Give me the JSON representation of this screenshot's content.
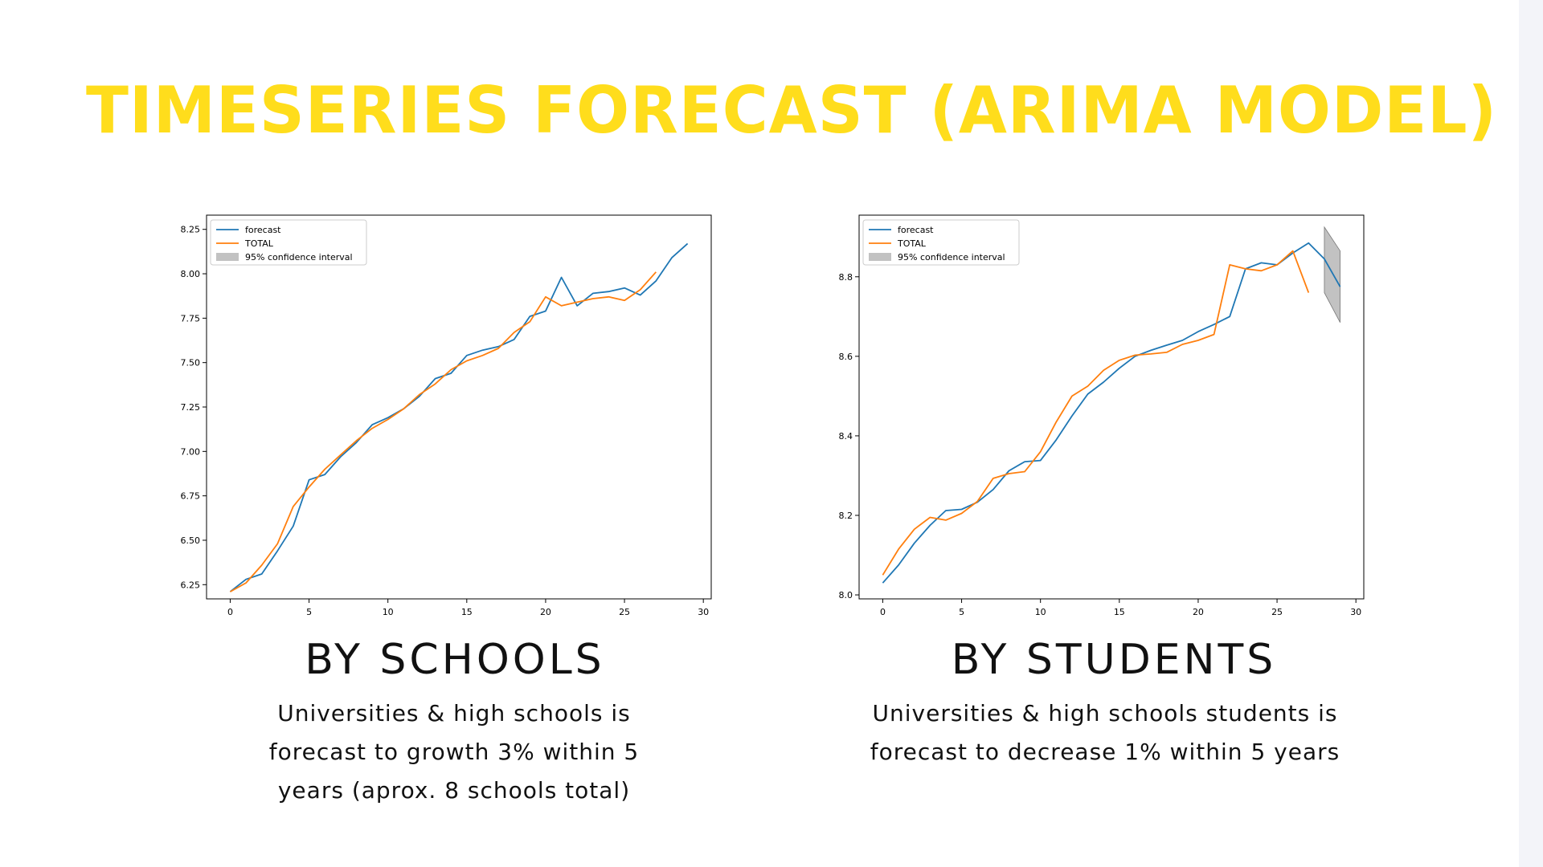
{
  "title": "TIMESERIES FORECAST (ARIMA MODEL)",
  "colors": {
    "title": "#ffdd1c",
    "forecast": "#1f77b4",
    "total": "#ff7f0e",
    "confidence": "#999999"
  },
  "sections": [
    {
      "heading": "BY SCHOOLS",
      "description": "Universities & high schools is forecast to growth 3% within 5 years (aprox. 8 schools total)"
    },
    {
      "heading": "BY STUDENTS",
      "description": "Universities & high schools students is forecast to decrease 1% within 5 years"
    }
  ],
  "chart_data": [
    {
      "type": "line",
      "legend": {
        "placement": "upper-left",
        "entries": [
          "forecast",
          "TOTAL",
          "95% confidence interval"
        ]
      },
      "xlim": [
        -1.5,
        30.5
      ],
      "ylim": [
        6.17,
        8.33
      ],
      "xticks": [
        0,
        5,
        10,
        15,
        20,
        25,
        30
      ],
      "xtick_labels": [
        "0",
        "5",
        "10",
        "15",
        "20",
        "25",
        "30"
      ],
      "yticks": [
        6.25,
        6.5,
        6.75,
        7.0,
        7.25,
        7.5,
        7.75,
        8.0,
        8.25
      ],
      "ytick_labels": [
        "6.25",
        "6.50",
        "6.75",
        "7.00",
        "7.25",
        "7.50",
        "7.75",
        "8.00",
        "8.25"
      ],
      "grid": false,
      "series": [
        {
          "name": "forecast",
          "x": [
            0,
            1,
            2,
            3,
            4,
            5,
            6,
            7,
            8,
            9,
            10,
            11,
            12,
            13,
            14,
            15,
            16,
            17,
            18,
            19,
            20,
            21,
            22,
            23,
            24,
            25,
            26,
            27,
            28,
            29
          ],
          "y": [
            6.21,
            6.28,
            6.31,
            6.44,
            6.58,
            6.84,
            6.87,
            6.97,
            7.05,
            7.15,
            7.19,
            7.24,
            7.31,
            7.41,
            7.44,
            7.54,
            7.57,
            7.59,
            7.63,
            7.76,
            7.79,
            7.98,
            7.82,
            7.89,
            7.9,
            7.92,
            7.88,
            7.96,
            8.09,
            8.17
          ]
        },
        {
          "name": "TOTAL",
          "x": [
            0,
            1,
            2,
            3,
            4,
            5,
            6,
            7,
            8,
            9,
            10,
            11,
            12,
            13,
            14,
            15,
            16,
            17,
            18,
            19,
            20,
            21,
            22,
            23,
            24,
            25,
            26,
            27
          ],
          "y": [
            6.21,
            6.26,
            6.36,
            6.48,
            6.69,
            6.8,
            6.9,
            6.98,
            7.06,
            7.13,
            7.18,
            7.24,
            7.32,
            7.38,
            7.46,
            7.51,
            7.54,
            7.58,
            7.67,
            7.73,
            7.87,
            7.82,
            7.84,
            7.86,
            7.87,
            7.85,
            7.91,
            8.01
          ]
        }
      ]
    },
    {
      "type": "line",
      "legend": {
        "placement": "upper-left",
        "entries": [
          "forecast",
          "TOTAL",
          "95% confidence interval"
        ]
      },
      "xlim": [
        -1.5,
        30.5
      ],
      "ylim": [
        7.99,
        8.955
      ],
      "xticks": [
        0,
        5,
        10,
        15,
        20,
        25,
        30
      ],
      "xtick_labels": [
        "0",
        "5",
        "10",
        "15",
        "20",
        "25",
        "30"
      ],
      "yticks": [
        8.0,
        8.2,
        8.4,
        8.6,
        8.8
      ],
      "ytick_labels": [
        "8.0",
        "8.2",
        "8.4",
        "8.6",
        "8.8"
      ],
      "grid": false,
      "series": [
        {
          "name": "forecast",
          "x": [
            0,
            1,
            2,
            3,
            4,
            5,
            6,
            7,
            8,
            9,
            10,
            11,
            12,
            13,
            14,
            15,
            16,
            17,
            18,
            19,
            20,
            21,
            22,
            23,
            24,
            25,
            26,
            27,
            28,
            29
          ],
          "y": [
            8.03,
            8.075,
            8.13,
            8.175,
            8.212,
            8.215,
            8.233,
            8.265,
            8.312,
            8.335,
            8.338,
            8.39,
            8.45,
            8.505,
            8.535,
            8.57,
            8.6,
            8.615,
            8.628,
            8.64,
            8.662,
            8.68,
            8.7,
            8.82,
            8.835,
            8.83,
            8.86,
            8.885,
            8.845,
            8.775
          ]
        },
        {
          "name": "TOTAL",
          "x": [
            0,
            1,
            2,
            3,
            4,
            5,
            6,
            7,
            8,
            9,
            10,
            11,
            12,
            13,
            14,
            15,
            16,
            17,
            18,
            19,
            20,
            21,
            22,
            23,
            24,
            25,
            26,
            27
          ],
          "y": [
            8.05,
            8.115,
            8.165,
            8.195,
            8.188,
            8.205,
            8.235,
            8.293,
            8.305,
            8.31,
            8.36,
            8.435,
            8.5,
            8.525,
            8.565,
            8.59,
            8.603,
            8.606,
            8.61,
            8.63,
            8.64,
            8.655,
            8.83,
            8.82,
            8.815,
            8.83,
            8.865,
            8.76
          ]
        }
      ],
      "confidence_interval": {
        "x": [
          28,
          29
        ],
        "lower": [
          8.76,
          8.685
        ],
        "upper": [
          8.925,
          8.865
        ]
      }
    }
  ]
}
